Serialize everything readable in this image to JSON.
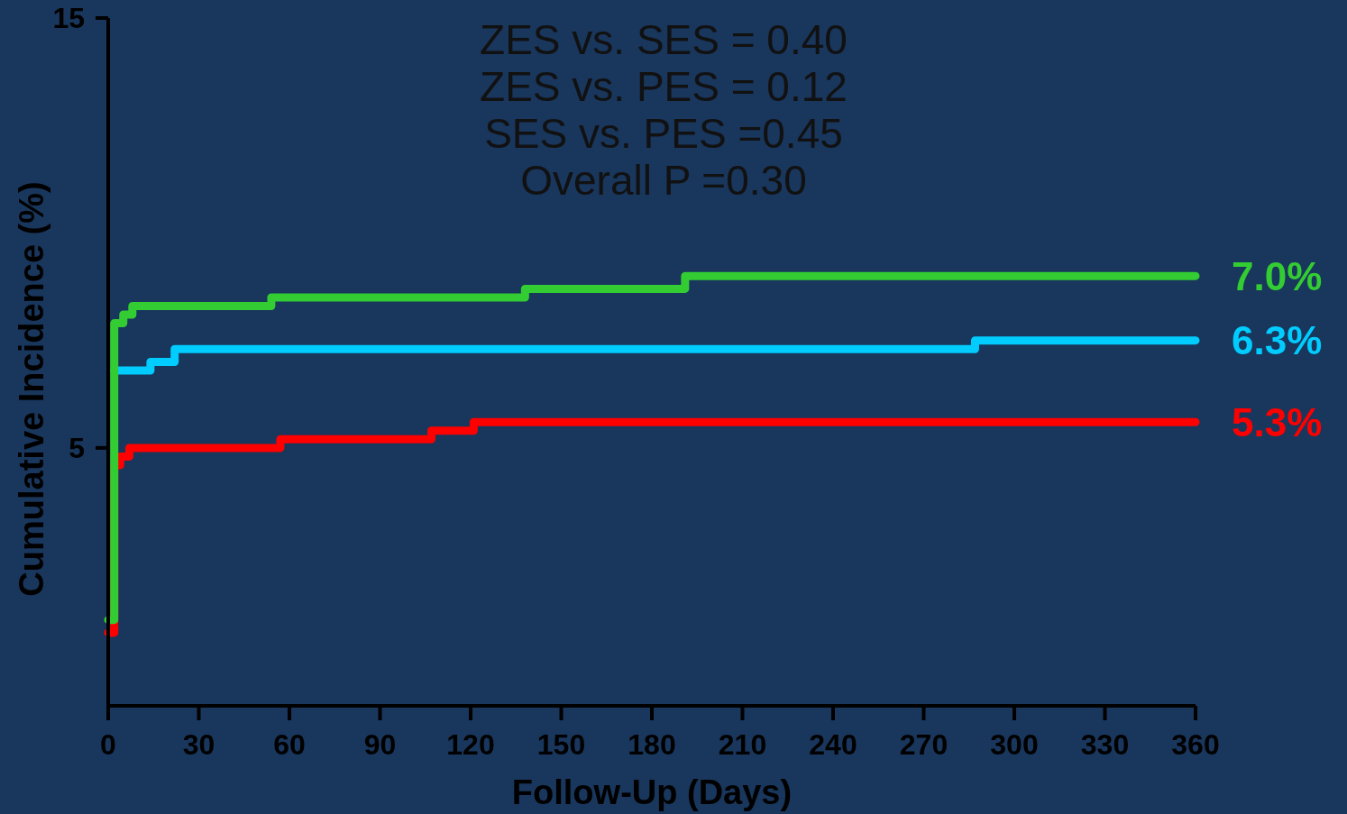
{
  "chart_data": {
    "type": "step",
    "xlabel": "Follow-Up (Days)",
    "ylabel": "Cumulative Incidence (%)",
    "xlim": [
      0,
      360
    ],
    "xticks": [
      0,
      30,
      60,
      90,
      120,
      150,
      180,
      210,
      240,
      270,
      300,
      330,
      360
    ],
    "ylim": [
      -1,
      15
    ],
    "yticks": [
      5,
      15
    ],
    "annotations": [
      "ZES vs. SES = 0.40",
      "ZES vs. PES = 0.12",
      "SES vs. PES =0.45",
      "Overall P =0.30",
      "7.0%",
      "6.3%",
      "5.3%"
    ],
    "series": [
      {
        "color": "#33cc33",
        "x": [
          0,
          2,
          5,
          8,
          54,
          138,
          191,
          360
        ],
        "values": [
          1.0,
          7.9,
          8.1,
          8.3,
          8.5,
          8.7,
          9.0,
          9.0
        ]
      },
      {
        "color": "#00ccff",
        "x": [
          2,
          14,
          22,
          287,
          360
        ],
        "values": [
          6.8,
          7.0,
          7.3,
          7.5,
          7.5
        ]
      },
      {
        "color": "#ff0000",
        "x": [
          0,
          2,
          4,
          7,
          57,
          107,
          121,
          360
        ],
        "values": [
          0.7,
          4.6,
          4.8,
          5.0,
          5.2,
          5.4,
          5.6,
          5.6
        ]
      }
    ]
  }
}
